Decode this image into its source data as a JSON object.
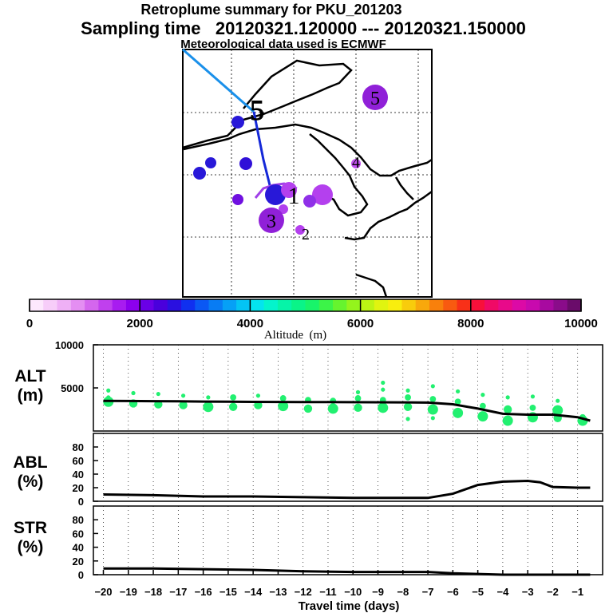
{
  "title_line1": "Retroplume summary for PKU_201203",
  "title_line2": "Sampling time   20120321.120000 --- 20120321.150000",
  "title_line3": "Meteorological data used is ECMWF",
  "colorbar": {
    "label": "Altitude  (m)",
    "ticks": [
      "0",
      "2000",
      "4000",
      "6000",
      "8000",
      "10000"
    ],
    "tick_values": [
      0,
      2000,
      4000,
      6000,
      8000,
      10000
    ],
    "colors": [
      "#fde8fd",
      "#f7cdf9",
      "#efb0f6",
      "#e48ef2",
      "#d466ee",
      "#c040ee",
      "#a81cf0",
      "#8c00ee",
      "#6a00e6",
      "#4a00dc",
      "#2a10e0",
      "#1030f0",
      "#0a58f4",
      "#087cf4",
      "#06a0f6",
      "#04c4f4",
      "#04e4ee",
      "#04f4cc",
      "#06f4a8",
      "#0af488",
      "#18f46a",
      "#3cf448",
      "#66f42e",
      "#94f41c",
      "#bcf414",
      "#e0f410",
      "#f8ee0e",
      "#f8cc0c",
      "#f8a80c",
      "#f8800c",
      "#f85a10",
      "#f83018",
      "#f8103a",
      "#f00a66",
      "#e80a8a",
      "#dc0aa6",
      "#c80aae",
      "#a80aa0",
      "#8a0c8a",
      "#6a0c6a"
    ],
    "ticks_bar_indices": [
      0,
      10,
      20,
      30
    ]
  },
  "map": {
    "labels": [
      {
        "text": "5",
        "kind": "large_purple"
      },
      {
        "text": "5",
        "kind": "outlined"
      },
      {
        "text": "4",
        "kind": "plain"
      },
      {
        "text": "3",
        "kind": "large_purple"
      },
      {
        "text": "2",
        "kind": "plain"
      },
      {
        "text": "1",
        "kind": "plain"
      }
    ]
  },
  "chart_data": [
    {
      "type": "scatter",
      "panel": "ALT",
      "ylabel": "ALT\n(m)",
      "ylabel_lines": [
        "ALT",
        "(m)"
      ],
      "ylim": [
        0,
        10000
      ],
      "yticks": [
        "10000",
        "5000"
      ],
      "ytick_values": [
        10000,
        5000
      ],
      "xlim": [
        -20,
        0
      ],
      "line_x": [
        -20,
        -19,
        -18,
        -17,
        -16,
        -15,
        -14,
        -13,
        -12,
        -11,
        -10,
        -9,
        -8,
        -7,
        -6,
        -5,
        -4,
        -3,
        -2,
        -1,
        -0.5
      ],
      "line_y": [
        3500,
        3480,
        3460,
        3440,
        3420,
        3400,
        3380,
        3370,
        3360,
        3350,
        3340,
        3330,
        3320,
        3300,
        3100,
        2600,
        2000,
        1900,
        1900,
        1600,
        1200
      ],
      "points": [
        {
          "x": -19.8,
          "y": 3400,
          "s": 5
        },
        {
          "x": -19.8,
          "y": 4700,
          "s": 2
        },
        {
          "x": -19.8,
          "y": 3900,
          "s": 2
        },
        {
          "x": -18.8,
          "y": 3200,
          "s": 4
        },
        {
          "x": -18.8,
          "y": 4400,
          "s": 2
        },
        {
          "x": -17.8,
          "y": 3100,
          "s": 4
        },
        {
          "x": -17.8,
          "y": 4300,
          "s": 2
        },
        {
          "x": -16.8,
          "y": 3000,
          "s": 4
        },
        {
          "x": -16.8,
          "y": 4100,
          "s": 2
        },
        {
          "x": -15.8,
          "y": 2800,
          "s": 5
        },
        {
          "x": -15.8,
          "y": 3900,
          "s": 2
        },
        {
          "x": -14.8,
          "y": 2800,
          "s": 4
        },
        {
          "x": -14.8,
          "y": 3900,
          "s": 3
        },
        {
          "x": -13.8,
          "y": 3000,
          "s": 4
        },
        {
          "x": -13.8,
          "y": 4100,
          "s": 2
        },
        {
          "x": -12.8,
          "y": 2900,
          "s": 5
        },
        {
          "x": -12.8,
          "y": 3800,
          "s": 3
        },
        {
          "x": -11.8,
          "y": 2600,
          "s": 4
        },
        {
          "x": -11.8,
          "y": 3600,
          "s": 3
        },
        {
          "x": -10.8,
          "y": 2600,
          "s": 5
        },
        {
          "x": -10.8,
          "y": 3500,
          "s": 3
        },
        {
          "x": -9.8,
          "y": 2700,
          "s": 4
        },
        {
          "x": -9.8,
          "y": 3800,
          "s": 3
        },
        {
          "x": -9.8,
          "y": 4500,
          "s": 2
        },
        {
          "x": -8.8,
          "y": 2700,
          "s": 5
        },
        {
          "x": -8.8,
          "y": 3600,
          "s": 3
        },
        {
          "x": -8.8,
          "y": 4800,
          "s": 2
        },
        {
          "x": -8.8,
          "y": 5600,
          "s": 2
        },
        {
          "x": -7.8,
          "y": 2800,
          "s": 4
        },
        {
          "x": -7.8,
          "y": 3900,
          "s": 3
        },
        {
          "x": -7.8,
          "y": 4700,
          "s": 2
        },
        {
          "x": -7.8,
          "y": 1400,
          "s": 2
        },
        {
          "x": -6.8,
          "y": 2500,
          "s": 5
        },
        {
          "x": -6.8,
          "y": 3700,
          "s": 3
        },
        {
          "x": -6.8,
          "y": 5200,
          "s": 2
        },
        {
          "x": -6.8,
          "y": 1500,
          "s": 2
        },
        {
          "x": -5.8,
          "y": 2100,
          "s": 5
        },
        {
          "x": -5.8,
          "y": 3400,
          "s": 3
        },
        {
          "x": -5.8,
          "y": 4600,
          "s": 2
        },
        {
          "x": -4.8,
          "y": 1700,
          "s": 5
        },
        {
          "x": -4.8,
          "y": 2900,
          "s": 3
        },
        {
          "x": -4.8,
          "y": 4200,
          "s": 2
        },
        {
          "x": -3.8,
          "y": 1200,
          "s": 5
        },
        {
          "x": -3.8,
          "y": 2500,
          "s": 4
        },
        {
          "x": -3.8,
          "y": 3900,
          "s": 2
        },
        {
          "x": -2.8,
          "y": 1600,
          "s": 5
        },
        {
          "x": -2.8,
          "y": 2700,
          "s": 3
        },
        {
          "x": -2.8,
          "y": 4000,
          "s": 2
        },
        {
          "x": -1.8,
          "y": 1500,
          "s": 4
        },
        {
          "x": -1.8,
          "y": 2400,
          "s": 5
        },
        {
          "x": -1.8,
          "y": 3500,
          "s": 2
        },
        {
          "x": -0.8,
          "y": 1200,
          "s": 5
        },
        {
          "x": -0.8,
          "y": 1600,
          "s": 3
        }
      ]
    },
    {
      "type": "line",
      "panel": "ABL",
      "ylabel": "ABL\n(%)",
      "ylabel_lines": [
        "ABL",
        "(%)"
      ],
      "ylim": [
        0,
        100
      ],
      "yticks": [
        "80",
        "60",
        "40",
        "20",
        "0"
      ],
      "ytick_values": [
        80,
        60,
        40,
        20,
        0
      ],
      "x": [
        -20,
        -18,
        -16,
        -14,
        -12,
        -10,
        -8,
        -7,
        -6,
        -5,
        -4,
        -3,
        -2.5,
        -2,
        -1,
        -0.5
      ],
      "y": [
        10,
        9,
        7,
        7,
        6,
        5,
        5,
        5,
        11,
        24,
        29,
        30,
        28,
        21,
        20,
        20
      ]
    },
    {
      "type": "line",
      "panel": "STR",
      "ylabel": "STR\n(%)",
      "ylabel_lines": [
        "STR",
        "(%)"
      ],
      "ylim": [
        0,
        100
      ],
      "yticks": [
        "80",
        "60",
        "40",
        "20",
        "0"
      ],
      "ytick_values": [
        80,
        60,
        40,
        20,
        0
      ],
      "x": [
        -20,
        -18,
        -16,
        -14,
        -12,
        -10,
        -8,
        -7,
        -6,
        -5,
        -4,
        -3,
        -2,
        -1,
        -0.5
      ],
      "y": [
        9,
        9,
        8,
        7,
        5,
        4,
        4,
        4,
        2,
        1,
        0,
        0,
        0,
        0,
        0
      ],
      "xlabel": "Travel time (days)",
      "xticks": [
        "−20",
        "−19",
        "−18",
        "−17",
        "−16",
        "−15",
        "−14",
        "−13",
        "−12",
        "−11",
        "−10",
        "−9",
        "−8",
        "−7",
        "−6",
        "−5",
        "−4",
        "−3",
        "−2",
        "−1"
      ],
      "xtick_values": [
        -20,
        -19,
        -18,
        -17,
        -16,
        -15,
        -14,
        -13,
        -12,
        -11,
        -10,
        -9,
        -8,
        -7,
        -6,
        -5,
        -4,
        -3,
        -2,
        -1
      ]
    }
  ]
}
